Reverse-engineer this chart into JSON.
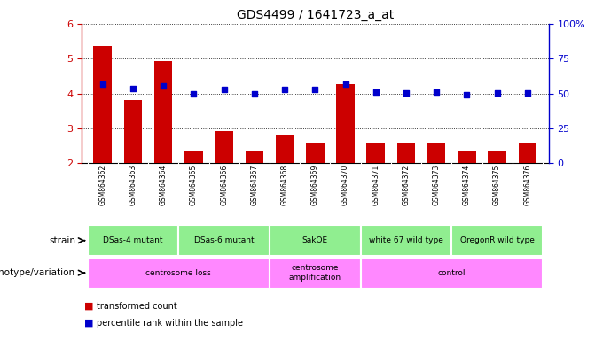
{
  "title": "GDS4499 / 1641723_a_at",
  "samples": [
    "GSM864362",
    "GSM864363",
    "GSM864364",
    "GSM864365",
    "GSM864366",
    "GSM864367",
    "GSM864368",
    "GSM864369",
    "GSM864370",
    "GSM864371",
    "GSM864372",
    "GSM864373",
    "GSM864374",
    "GSM864375",
    "GSM864376"
  ],
  "red_values": [
    5.35,
    3.82,
    4.93,
    2.35,
    2.93,
    2.35,
    2.8,
    2.57,
    4.27,
    2.58,
    2.58,
    2.58,
    2.35,
    2.35,
    2.57
  ],
  "blue_values": [
    4.27,
    4.15,
    4.22,
    3.98,
    4.12,
    3.98,
    4.12,
    4.12,
    4.27,
    4.05,
    4.02,
    4.03,
    3.97,
    4.02,
    4.02
  ],
  "ylim_left": [
    2,
    6
  ],
  "ylim_right": [
    0,
    100
  ],
  "yticks_left": [
    2,
    3,
    4,
    5,
    6
  ],
  "yticks_right": [
    0,
    25,
    50,
    75,
    100
  ],
  "ytick_right_labels": [
    "0",
    "25",
    "50",
    "75",
    "100%"
  ],
  "strain_groups": [
    {
      "label": "DSas-4 mutant",
      "start": 0,
      "end": 2,
      "color": "#90ee90"
    },
    {
      "label": "DSas-6 mutant",
      "start": 3,
      "end": 5,
      "color": "#90ee90"
    },
    {
      "label": "SakOE",
      "start": 6,
      "end": 8,
      "color": "#90ee90"
    },
    {
      "label": "white 67 wild type",
      "start": 9,
      "end": 11,
      "color": "#90ee90"
    },
    {
      "label": "OregonR wild type",
      "start": 12,
      "end": 14,
      "color": "#90ee90"
    }
  ],
  "genotype_groups": [
    {
      "label": "centrosome loss",
      "start": 0,
      "end": 5,
      "color": "#ff88ff"
    },
    {
      "label": "centrosome\namplification",
      "start": 6,
      "end": 8,
      "color": "#ff88ff"
    },
    {
      "label": "control",
      "start": 9,
      "end": 14,
      "color": "#ff88ff"
    }
  ],
  "strain_label": "strain",
  "genotype_label": "genotype/variation",
  "legend_red": "transformed count",
  "legend_blue": "percentile rank within the sample",
  "bar_color": "#cc0000",
  "dot_color": "#0000cc",
  "axis_color_left": "#cc0000",
  "axis_color_right": "#0000cc",
  "tick_label_area_color": "#cccccc",
  "bar_bottom": 2
}
